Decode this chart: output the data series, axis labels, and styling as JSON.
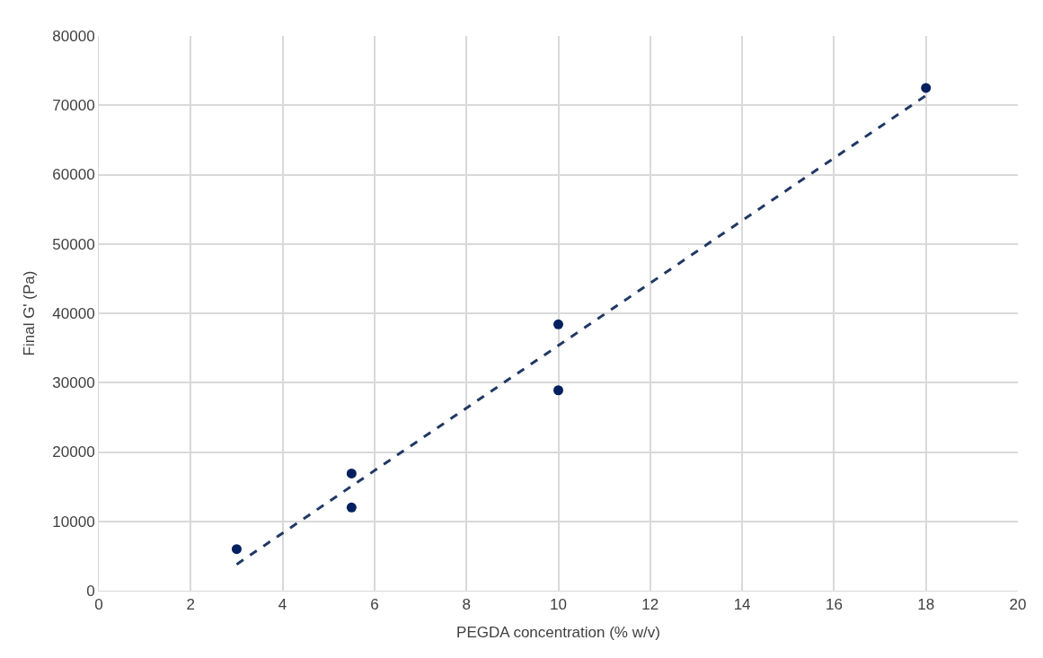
{
  "chart_data": {
    "type": "scatter",
    "xlabel": "PEGDA concentration (% w/v)",
    "ylabel": "Final G' (Pa)",
    "xlim": [
      0,
      20
    ],
    "xticks": [
      0,
      2,
      4,
      6,
      8,
      10,
      12,
      14,
      16,
      18,
      20
    ],
    "ylim": [
      0,
      80000
    ],
    "yticks": [
      0,
      10000,
      20000,
      30000,
      40000,
      50000,
      60000,
      70000,
      80000
    ],
    "grid": true,
    "legend": false,
    "series": [
      {
        "type": "scatter",
        "color": "#002060",
        "marker": "circle",
        "x": [
          3,
          5.5,
          5.5,
          10,
          10,
          18
        ],
        "values": [
          6000,
          16900,
          12000,
          38400,
          28900,
          72500
        ]
      },
      {
        "type": "line",
        "color": "#203864",
        "line_style": "dashed",
        "marker": "none",
        "x": [
          3,
          18
        ],
        "values": [
          3800,
          71400
        ]
      }
    ]
  }
}
